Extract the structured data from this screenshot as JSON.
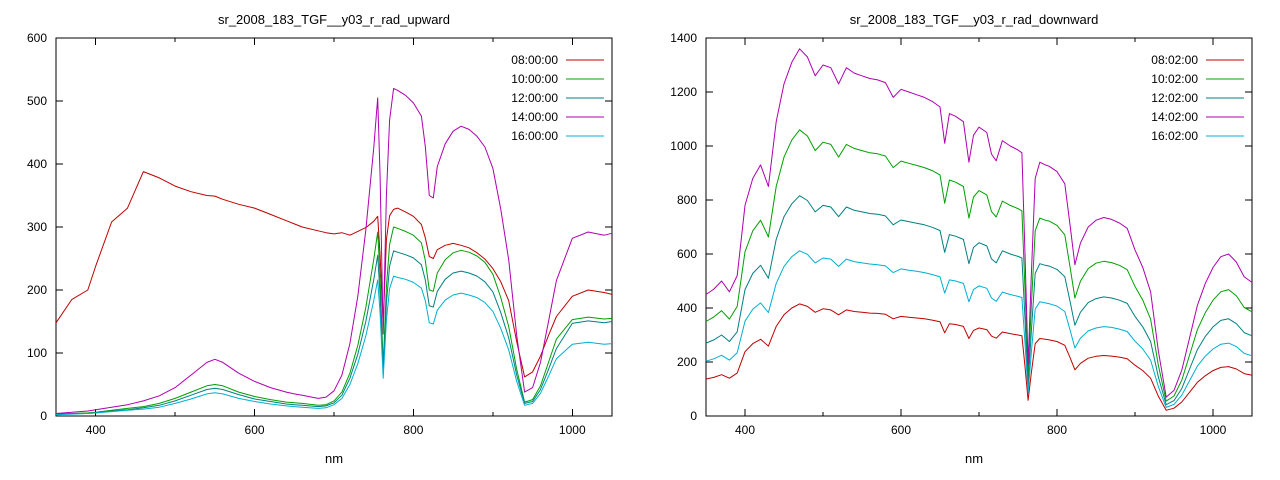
{
  "colors": {
    "background": "#ffffff",
    "axis": "#000000"
  },
  "chart_data": [
    {
      "type": "line",
      "title": "sr_2008_183_TGF__y03_r_rad_upward",
      "xlabel": "nm",
      "xlim": [
        350,
        1050
      ],
      "ylim": [
        0,
        600
      ],
      "xticks": [
        400,
        600,
        800,
        1000
      ],
      "xticks_all": [
        400,
        500,
        600,
        700,
        800,
        900,
        1000
      ],
      "yticks": [
        0,
        100,
        200,
        300,
        400,
        500,
        600
      ],
      "grid": false,
      "legend_position": "top-right",
      "x": [
        350,
        370,
        390,
        400,
        420,
        440,
        460,
        480,
        500,
        520,
        540,
        550,
        560,
        580,
        600,
        620,
        640,
        650,
        660,
        680,
        690,
        700,
        710,
        720,
        730,
        740,
        750,
        755,
        758,
        762,
        766,
        770,
        775,
        780,
        790,
        800,
        810,
        815,
        820,
        825,
        830,
        840,
        850,
        860,
        870,
        880,
        890,
        900,
        910,
        920,
        930,
        940,
        950,
        960,
        970,
        980,
        1000,
        1020,
        1040,
        1050
      ],
      "series": [
        {
          "name": "08:00:00",
          "color": "#c00000",
          "values": [
            148,
            185,
            200,
            238,
            308,
            330,
            388,
            378,
            365,
            356,
            350,
            349,
            344,
            336,
            330,
            320,
            310,
            305,
            300,
            294,
            291,
            289,
            291,
            287,
            293,
            299,
            309,
            317,
            255,
            145,
            280,
            318,
            328,
            330,
            324,
            317,
            304,
            283,
            253,
            250,
            264,
            271,
            274,
            271,
            267,
            259,
            249,
            234,
            213,
            183,
            118,
            62,
            70,
            95,
            128,
            158,
            190,
            200,
            196,
            193
          ]
        },
        {
          "name": "10:00:00",
          "color": "#00a000",
          "values": [
            3,
            4,
            5,
            6,
            9,
            12,
            15,
            20,
            28,
            38,
            48,
            50,
            48,
            38,
            31,
            26,
            22,
            21,
            20,
            17,
            18,
            24,
            38,
            68,
            112,
            172,
            248,
            292,
            220,
            80,
            205,
            272,
            300,
            298,
            293,
            287,
            275,
            247,
            200,
            198,
            227,
            248,
            259,
            263,
            260,
            254,
            244,
            225,
            188,
            142,
            74,
            22,
            26,
            48,
            85,
            122,
            153,
            157,
            154,
            155
          ]
        },
        {
          "name": "12:00:00",
          "color": "#008080",
          "values": [
            3,
            4,
            4,
            5,
            8,
            10,
            13,
            17,
            24,
            33,
            42,
            44,
            42,
            34,
            27,
            23,
            19,
            18,
            17,
            15,
            16,
            21,
            33,
            60,
            98,
            150,
            216,
            255,
            192,
            70,
            180,
            238,
            262,
            260,
            256,
            251,
            240,
            216,
            175,
            173,
            198,
            217,
            227,
            230,
            227,
            222,
            213,
            197,
            164,
            124,
            65,
            20,
            23,
            42,
            74,
            107,
            147,
            151,
            148,
            150
          ]
        },
        {
          "name": "14:00:00",
          "color": "#b000b0",
          "values": [
            4,
            6,
            8,
            10,
            14,
            18,
            24,
            32,
            45,
            65,
            85,
            90,
            85,
            68,
            55,
            45,
            38,
            35,
            33,
            28,
            30,
            40,
            65,
            115,
            190,
            295,
            425,
            505,
            380,
            130,
            350,
            470,
            520,
            517,
            509,
            497,
            476,
            428,
            350,
            346,
            396,
            432,
            452,
            460,
            455,
            444,
            427,
            393,
            328,
            248,
            128,
            38,
            45,
            85,
            150,
            215,
            282,
            292,
            287,
            290
          ]
        },
        {
          "name": "16:00:00",
          "color": "#00b0d0",
          "values": [
            2,
            3,
            4,
            5,
            7,
            9,
            11,
            14,
            20,
            27,
            35,
            37,
            35,
            28,
            23,
            19,
            16,
            15,
            14,
            12,
            13,
            18,
            28,
            50,
            83,
            127,
            183,
            216,
            163,
            60,
            152,
            202,
            222,
            220,
            217,
            212,
            203,
            183,
            148,
            146,
            168,
            184,
            192,
            195,
            192,
            188,
            180,
            166,
            139,
            105,
            55,
            17,
            20,
            36,
            63,
            91,
            114,
            117,
            114,
            115
          ]
        }
      ]
    },
    {
      "type": "line",
      "title": "sr_2008_183_TGF__y03_r_rad_downward",
      "xlabel": "nm",
      "xlim": [
        350,
        1050
      ],
      "ylim": [
        0,
        1400
      ],
      "xticks": [
        400,
        600,
        800,
        1000
      ],
      "xticks_all": [
        400,
        500,
        600,
        700,
        800,
        900,
        1000
      ],
      "yticks": [
        0,
        200,
        400,
        600,
        800,
        1000,
        1200,
        1400
      ],
      "grid": false,
      "legend_position": "top-right",
      "x": [
        350,
        360,
        370,
        380,
        390,
        400,
        410,
        420,
        430,
        440,
        450,
        460,
        470,
        480,
        490,
        500,
        510,
        520,
        530,
        540,
        550,
        560,
        570,
        580,
        590,
        600,
        610,
        620,
        630,
        640,
        650,
        656,
        662,
        670,
        680,
        687,
        693,
        700,
        710,
        716,
        722,
        730,
        740,
        750,
        755,
        759,
        763,
        767,
        772,
        778,
        785,
        790,
        800,
        810,
        817,
        823,
        830,
        840,
        850,
        860,
        870,
        880,
        890,
        900,
        910,
        920,
        930,
        940,
        950,
        960,
        970,
        980,
        990,
        1000,
        1010,
        1020,
        1030,
        1040,
        1050
      ],
      "series": [
        {
          "name": "08:02:00",
          "color": "#c00000",
          "values": [
            137,
            143,
            153,
            140,
            159,
            238,
            268,
            284,
            259,
            332,
            375,
            400,
            415,
            406,
            384,
            397,
            393,
            375,
            393,
            387,
            384,
            381,
            380,
            377,
            360,
            369,
            366,
            363,
            360,
            355,
            349,
            308,
            342,
            339,
            332,
            287,
            317,
            326,
            320,
            296,
            288,
            311,
            305,
            300,
            297,
            183,
            58,
            159,
            268,
            287,
            284,
            282,
            276,
            262,
            214,
            171,
            195,
            214,
            221,
            224,
            222,
            218,
            212,
            188,
            168,
            140,
            73,
            21,
            29,
            52,
            88,
            125,
            149,
            168,
            180,
            183,
            174,
            157,
            151
          ]
        },
        {
          "name": "10:02:00",
          "color": "#00a000",
          "values": [
            350,
            367,
            390,
            359,
            406,
            608,
            686,
            725,
            663,
            850,
            959,
            1022,
            1060,
            1037,
            983,
            1014,
            1006,
            959,
            1006,
            991,
            983,
            975,
            971,
            963,
            920,
            944,
            936,
            928,
            920,
            909,
            893,
            788,
            874,
            866,
            850,
            733,
            811,
            835,
            819,
            757,
            737,
            796,
            780,
            768,
            760,
            468,
            148,
            406,
            686,
            733,
            725,
            722,
            706,
            671,
            546,
            437,
            499,
            546,
            566,
            573,
            568,
            558,
            542,
            480,
            429,
            359,
            187,
            55,
            74,
            133,
            226,
            320,
            382,
            429,
            460,
            468,
            445,
            402,
            386
          ]
        },
        {
          "name": "12:02:00",
          "color": "#008080",
          "values": [
            270,
            282,
            300,
            276,
            312,
            468,
            528,
            558,
            510,
            654,
            738,
            786,
            816,
            798,
            756,
            780,
            774,
            738,
            774,
            762,
            756,
            750,
            747,
            741,
            708,
            726,
            720,
            714,
            708,
            699,
            687,
            606,
            672,
            666,
            654,
            564,
            624,
            642,
            630,
            582,
            567,
            612,
            600,
            591,
            585,
            360,
            114,
            312,
            528,
            564,
            558,
            555,
            543,
            516,
            420,
            336,
            384,
            420,
            435,
            441,
            437,
            429,
            417,
            369,
            330,
            276,
            144,
            42,
            57,
            102,
            174,
            246,
            294,
            330,
            354,
            360,
            342,
            309,
            297
          ]
        },
        {
          "name": "14:02:00",
          "color": "#b000b0",
          "values": [
            450,
            470,
            500,
            460,
            520,
            780,
            880,
            930,
            850,
            1090,
            1230,
            1310,
            1360,
            1330,
            1260,
            1300,
            1290,
            1230,
            1290,
            1270,
            1260,
            1250,
            1245,
            1235,
            1180,
            1210,
            1200,
            1190,
            1180,
            1165,
            1145,
            1010,
            1120,
            1110,
            1090,
            940,
            1040,
            1070,
            1050,
            970,
            945,
            1020,
            1000,
            985,
            975,
            600,
            190,
            520,
            880,
            940,
            930,
            925,
            905,
            860,
            700,
            560,
            640,
            700,
            725,
            735,
            728,
            715,
            695,
            615,
            550,
            460,
            240,
            70,
            95,
            170,
            290,
            410,
            490,
            550,
            590,
            600,
            570,
            515,
            495
          ]
        },
        {
          "name": "16:02:00",
          "color": "#00b0d0",
          "values": [
            203,
            212,
            225,
            207,
            234,
            351,
            396,
            419,
            383,
            491,
            554,
            590,
            612,
            599,
            567,
            585,
            581,
            554,
            581,
            572,
            567,
            563,
            560,
            556,
            531,
            545,
            540,
            536,
            531,
            524,
            515,
            455,
            504,
            500,
            491,
            423,
            468,
            482,
            473,
            437,
            425,
            459,
            450,
            443,
            439,
            270,
            86,
            234,
            396,
            423,
            419,
            416,
            407,
            387,
            315,
            252,
            288,
            315,
            326,
            331,
            328,
            322,
            313,
            277,
            248,
            207,
            108,
            32,
            43,
            77,
            131,
            185,
            221,
            248,
            266,
            270,
            257,
            232,
            223
          ]
        }
      ]
    }
  ]
}
